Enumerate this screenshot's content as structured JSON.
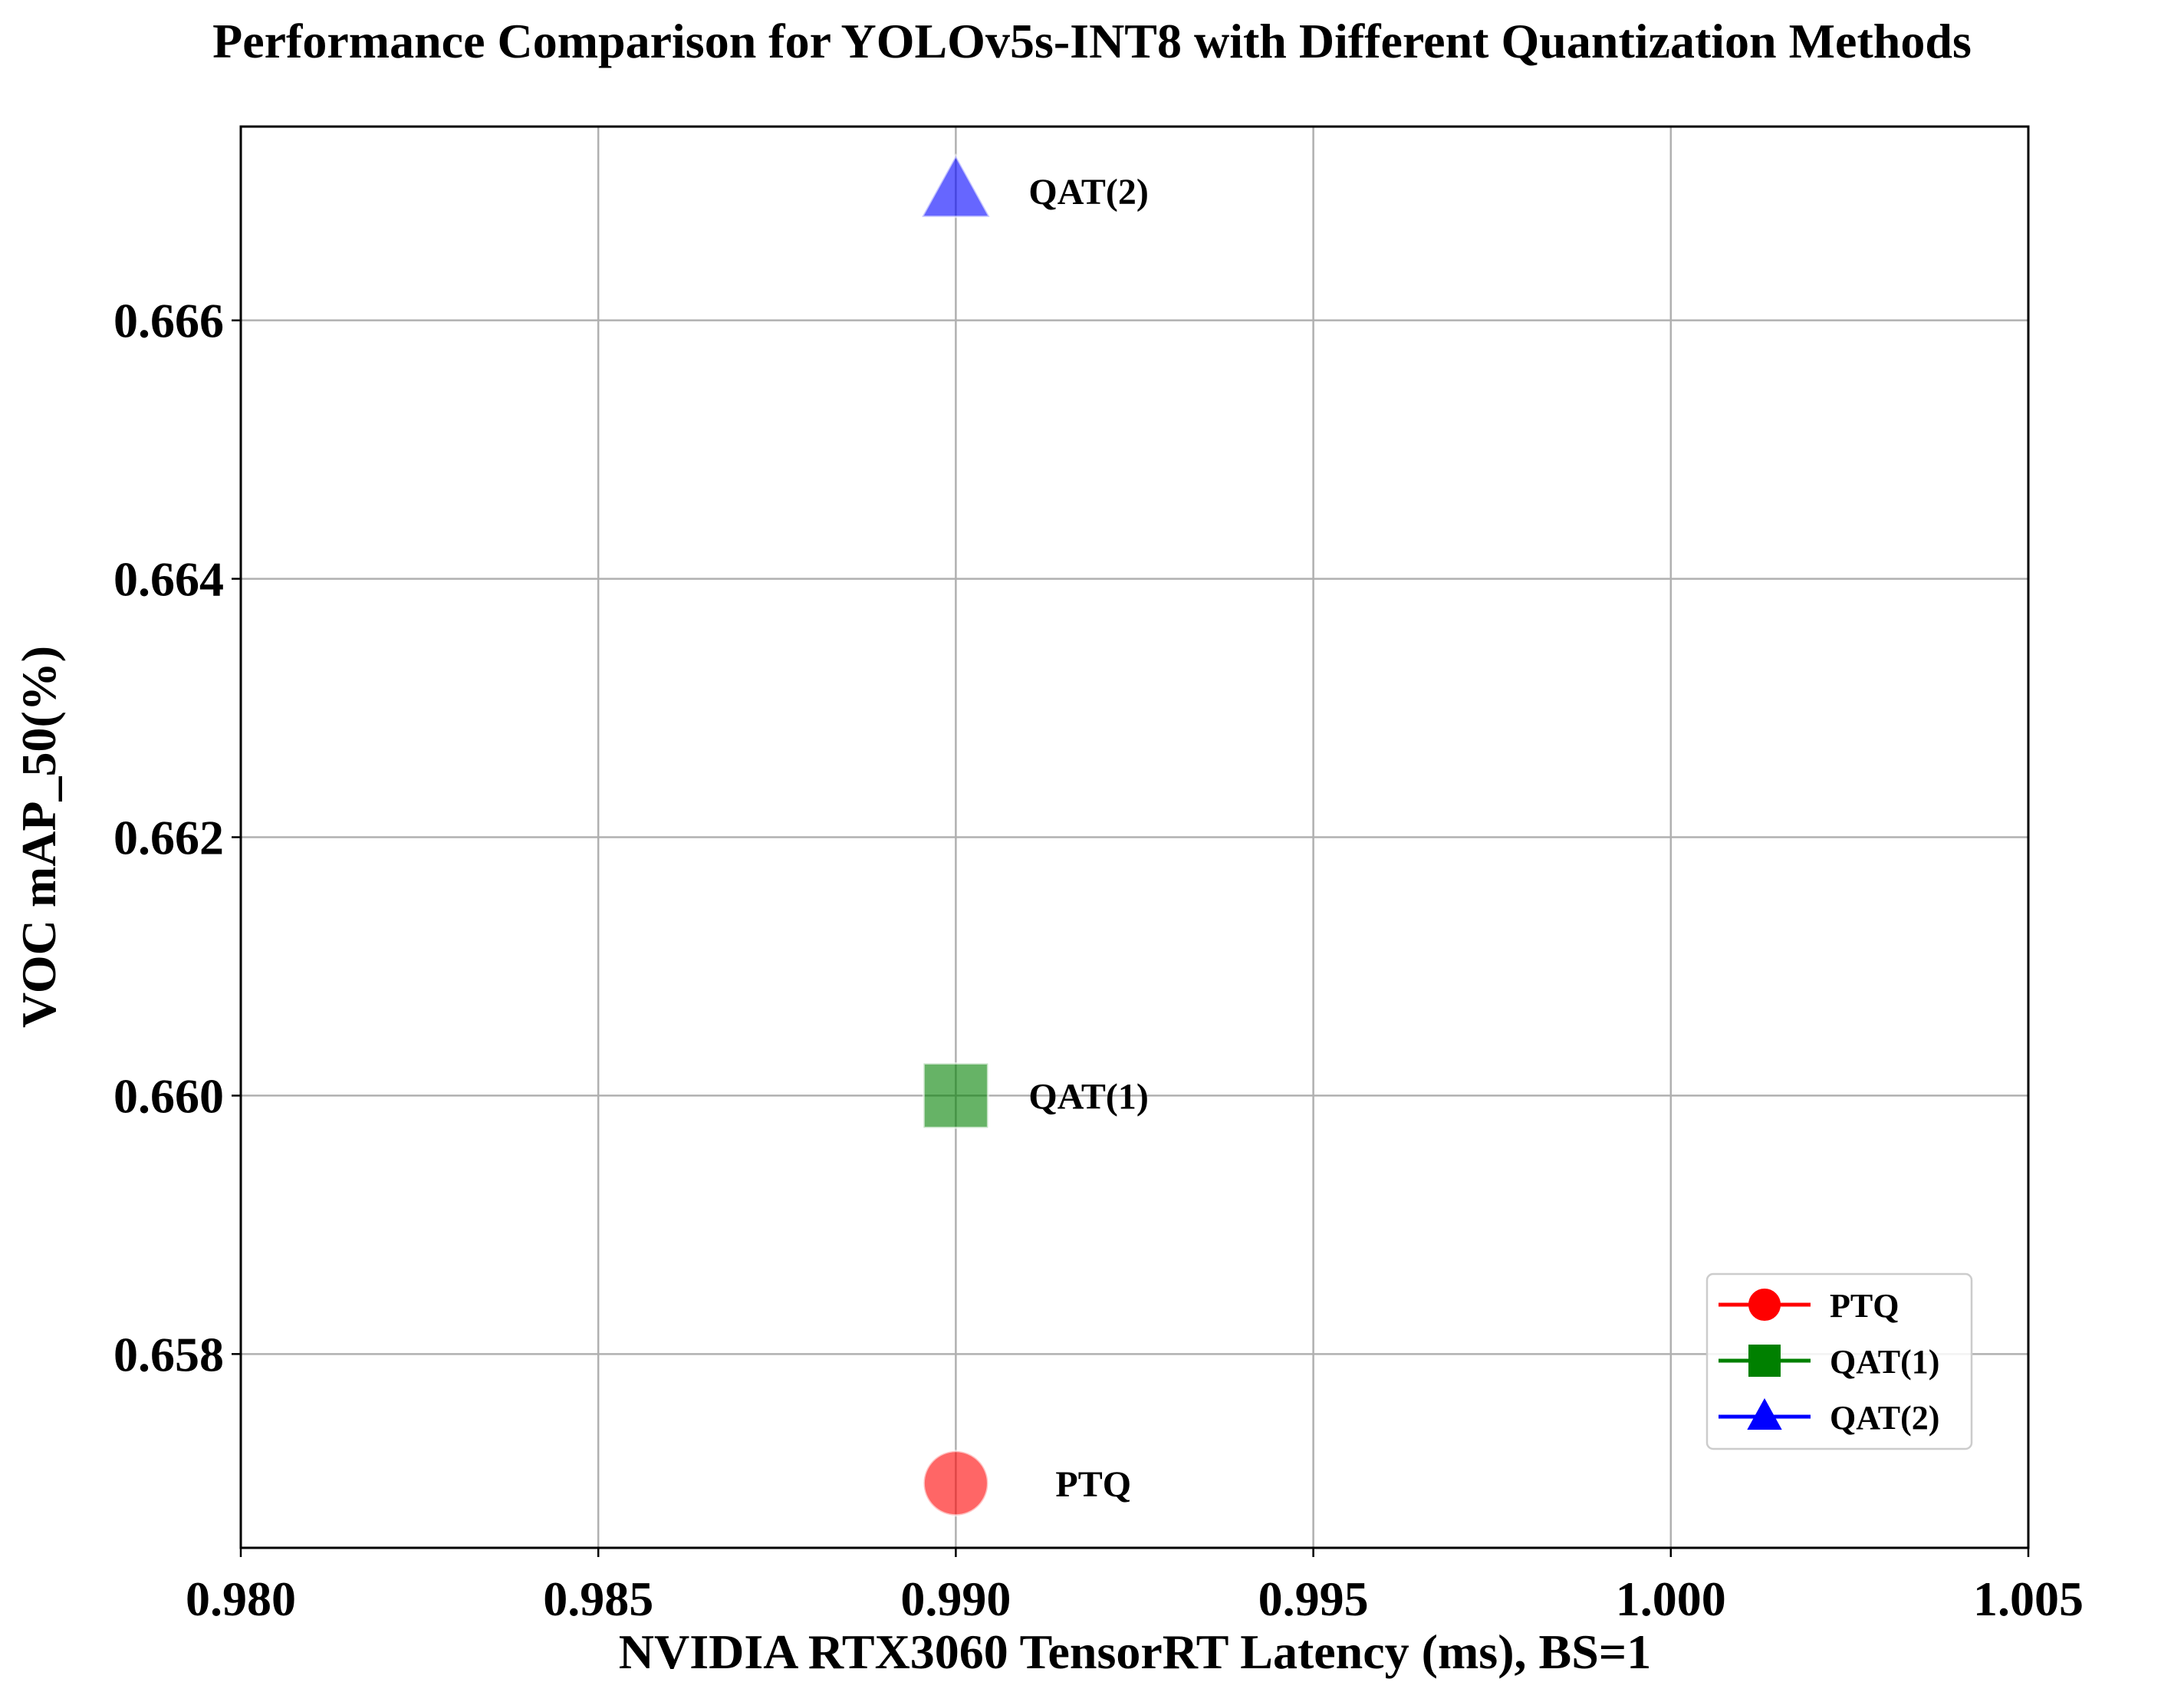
{
  "chart_data": {
    "type": "scatter",
    "title": "Performance Comparison for YOLOv5s-INT8 with Different Quantization Methods",
    "xlabel": "NVIDIA RTX3060 TensorRT Latency (ms), BS=1",
    "ylabel": "VOC mAP_50(%)",
    "xlim": [
      0.98,
      1.005
    ],
    "ylim": [
      0.6565,
      0.6675
    ],
    "xticks": [
      "0.980",
      "0.985",
      "0.990",
      "0.995",
      "1.000",
      "1.005"
    ],
    "xtick_values": [
      0.98,
      0.985,
      0.99,
      0.995,
      1.0,
      1.005
    ],
    "yticks": [
      "0.658",
      "0.660",
      "0.662",
      "0.664",
      "0.666"
    ],
    "ytick_values": [
      0.658,
      0.66,
      0.662,
      0.664,
      0.666
    ],
    "grid": true,
    "legend_position": "lower-right",
    "series": [
      {
        "name": "PTQ",
        "marker": "circle",
        "color": "#ff0000",
        "x": 0.99,
        "y": 0.657,
        "label": "PTQ"
      },
      {
        "name": "QAT(1)",
        "marker": "square",
        "color": "#008000",
        "x": 0.99,
        "y": 0.66,
        "label": "QAT(1)"
      },
      {
        "name": "QAT(2)",
        "marker": "triangle",
        "color": "#0000ff",
        "x": 0.99,
        "y": 0.667,
        "label": "QAT(2)"
      }
    ]
  }
}
